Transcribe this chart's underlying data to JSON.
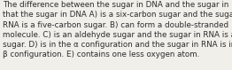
{
  "lines": [
    "The difference between the sugar in DNA and the sugar in RNA is",
    "that the sugar in DNA A) is a six-carbon sugar and the sugar in",
    "RNA is a five-carbon sugar. B) can form a double-stranded",
    "molecule. C) is an aldehyde sugar and the sugar in RNA is a keto",
    "sugar. D) is in the α configuration and the sugar in RNA is in the",
    "β configuration. E) contains one less oxygen atom."
  ],
  "background_color": "#f0efea",
  "text_color": "#2d2d2d",
  "fontsize": 6.3,
  "fig_width": 2.62,
  "fig_height": 0.79,
  "dpi": 100
}
